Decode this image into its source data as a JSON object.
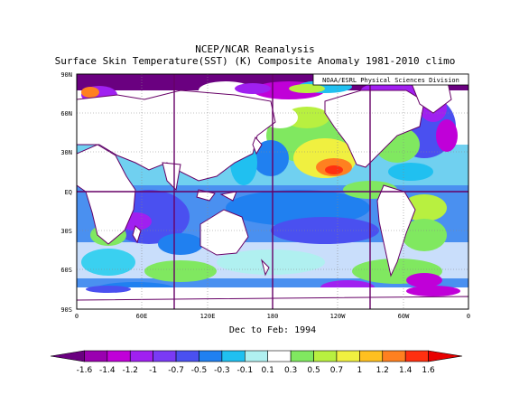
{
  "title": "NCEP/NCAR Reanalysis",
  "subtitle": "Surface Skin Temperature(SST) (K) Composite Anomaly 1981-2010 climo",
  "credit": "NOAA/ESRL Physical Sciences Division",
  "period": "Dec to Feb: 1994",
  "lat_labels": [
    "90N",
    "60N",
    "30N",
    "EQ",
    "30S",
    "60S",
    "90S"
  ],
  "lon_labels": [
    "0",
    "60E",
    "120E",
    "180",
    "120W",
    "60W",
    "0"
  ],
  "colorbar": {
    "labels": [
      "-1.6",
      "-1.4",
      "-1.2",
      "-1",
      "-0.7",
      "-0.5",
      "-0.3",
      "-0.1",
      "0.1",
      "0.3",
      "0.5",
      "0.7",
      "1",
      "1.2",
      "1.4",
      "1.6"
    ],
    "colors": [
      "#6a0080",
      "#9a00b0",
      "#c000d8",
      "#a020f0",
      "#7a3af5",
      "#4a50f0",
      "#2080f0",
      "#20c0f0",
      "#b0f0f0",
      "#ffffff",
      "#80e860",
      "#b8f040",
      "#f0f040",
      "#ffc020",
      "#ff8020",
      "#ff3010",
      "#e80000"
    ]
  },
  "colors": {
    "land": "#ffffff",
    "coast": "#660066",
    "grid": "#660066"
  }
}
